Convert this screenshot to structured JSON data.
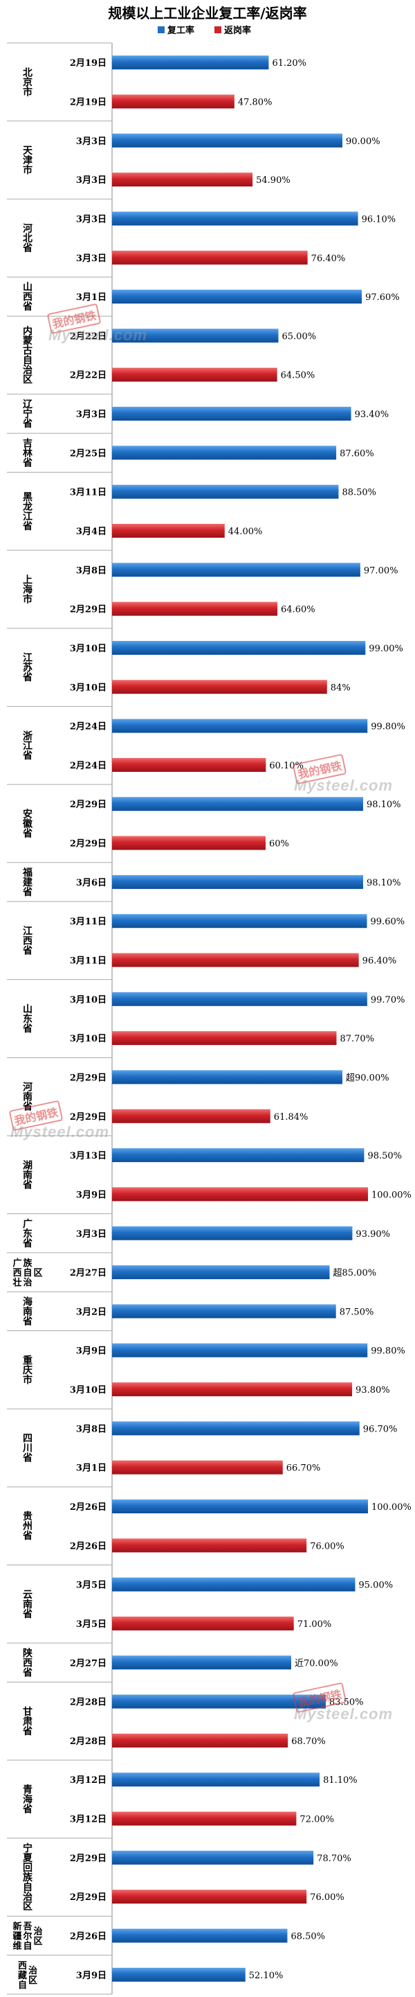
{
  "chart_data": {
    "type": "bar",
    "orientation": "horizontal",
    "title": "规模以上工业企业复工率/返岗率",
    "legend": {
      "placement": "top",
      "items": [
        {
          "name": "复工率",
          "color": "#1f6fc5"
        },
        {
          "name": "返岗率",
          "color": "#d0232a"
        }
      ]
    },
    "xlim": [
      0,
      100
    ],
    "grid": false,
    "bars": [
      {
        "date": "2月19日",
        "metric": "复工率",
        "value": 61.2,
        "label": "61.20%"
      },
      {
        "date": "2月19日",
        "metric": "返岗率",
        "value": 47.8,
        "label": "47.80%"
      },
      {
        "date": "3月3日",
        "metric": "复工率",
        "value": 90.0,
        "label": "90.00%"
      },
      {
        "date": "3月3日",
        "metric": "返岗率",
        "value": 54.9,
        "label": "54.90%"
      },
      {
        "date": "3月3日",
        "metric": "复工率",
        "value": 96.1,
        "label": "96.10%"
      },
      {
        "date": "3月3日",
        "metric": "返岗率",
        "value": 76.4,
        "label": "76.40%"
      },
      {
        "date": "3月1日",
        "metric": "复工率",
        "value": 97.6,
        "label": "97.60%"
      },
      {
        "date": "2月22日",
        "metric": "复工率",
        "value": 65.0,
        "label": "65.00%"
      },
      {
        "date": "2月22日",
        "metric": "返岗率",
        "value": 64.5,
        "label": "64.50%"
      },
      {
        "date": "3月3日",
        "metric": "复工率",
        "value": 93.4,
        "label": "93.40%"
      },
      {
        "date": "2月25日",
        "metric": "复工率",
        "value": 87.6,
        "label": "87.60%"
      },
      {
        "date": "3月11日",
        "metric": "复工率",
        "value": 88.5,
        "label": "88.50%"
      },
      {
        "date": "3月4日",
        "metric": "返岗率",
        "value": 44.0,
        "label": "44.00%"
      },
      {
        "date": "3月8日",
        "metric": "复工率",
        "value": 97.0,
        "label": "97.00%"
      },
      {
        "date": "2月29日",
        "metric": "返岗率",
        "value": 64.6,
        "label": "64.60%"
      },
      {
        "date": "3月10日",
        "metric": "复工率",
        "value": 99.0,
        "label": "99.00%"
      },
      {
        "date": "3月10日",
        "metric": "返岗率",
        "value": 84.0,
        "label": "84%"
      },
      {
        "date": "2月24日",
        "metric": "复工率",
        "value": 99.8,
        "label": "99.80%"
      },
      {
        "date": "2月24日",
        "metric": "返岗率",
        "value": 60.1,
        "label": "60.10%"
      },
      {
        "date": "2月29日",
        "metric": "复工率",
        "value": 98.1,
        "label": "98.10%"
      },
      {
        "date": "2月29日",
        "metric": "返岗率",
        "value": 60.0,
        "label": "60%"
      },
      {
        "date": "3月6日",
        "metric": "复工率",
        "value": 98.1,
        "label": "98.10%"
      },
      {
        "date": "3月11日",
        "metric": "复工率",
        "value": 99.6,
        "label": "99.60%"
      },
      {
        "date": "3月11日",
        "metric": "返岗率",
        "value": 96.4,
        "label": "96.40%"
      },
      {
        "date": "3月10日",
        "metric": "复工率",
        "value": 99.7,
        "label": "99.70%"
      },
      {
        "date": "3月10日",
        "metric": "返岗率",
        "value": 87.7,
        "label": "87.70%"
      },
      {
        "date": "2月29日",
        "metric": "复工率",
        "value": 90.0,
        "label": "超90.00%"
      },
      {
        "date": "2月29日",
        "metric": "返岗率",
        "value": 61.84,
        "label": "61.84%"
      },
      {
        "date": "3月13日",
        "metric": "复工率",
        "value": 98.5,
        "label": "98.50%"
      },
      {
        "date": "3月9日",
        "metric": "返岗率",
        "value": 100.0,
        "label": "100.00%"
      },
      {
        "date": "3月3日",
        "metric": "复工率",
        "value": 93.9,
        "label": "93.90%"
      },
      {
        "date": "2月27日",
        "metric": "复工率",
        "value": 85.0,
        "label": "超85.00%"
      },
      {
        "date": "3月2日",
        "metric": "复工率",
        "value": 87.5,
        "label": "87.50%"
      },
      {
        "date": "3月9日",
        "metric": "复工率",
        "value": 99.8,
        "label": "99.80%"
      },
      {
        "date": "3月10日",
        "metric": "返岗率",
        "value": 93.8,
        "label": "93.80%"
      },
      {
        "date": "3月8日",
        "metric": "复工率",
        "value": 96.7,
        "label": "96.70%"
      },
      {
        "date": "3月1日",
        "metric": "返岗率",
        "value": 66.7,
        "label": "66.70%"
      },
      {
        "date": "2月26日",
        "metric": "复工率",
        "value": 100.0,
        "label": "100.00%"
      },
      {
        "date": "2月26日",
        "metric": "返岗率",
        "value": 76.0,
        "label": "76.00%"
      },
      {
        "date": "3月5日",
        "metric": "复工率",
        "value": 95.0,
        "label": "95.00%"
      },
      {
        "date": "3月5日",
        "metric": "返岗率",
        "value": 71.0,
        "label": "71.00%"
      },
      {
        "date": "2月27日",
        "metric": "复工率",
        "value": 70.0,
        "label": "近70.00%"
      },
      {
        "date": "2月28日",
        "metric": "复工率",
        "value": 83.5,
        "label": "83.50%"
      },
      {
        "date": "2月28日",
        "metric": "返岗率",
        "value": 68.7,
        "label": "68.70%"
      },
      {
        "date": "3月12日",
        "metric": "复工率",
        "value": 81.1,
        "label": "81.10%"
      },
      {
        "date": "3月12日",
        "metric": "返岗率",
        "value": 72.0,
        "label": "72.00%"
      },
      {
        "date": "2月29日",
        "metric": "复工率",
        "value": 78.7,
        "label": "78.70%"
      },
      {
        "date": "2月29日",
        "metric": "返岗率",
        "value": 76.0,
        "label": "76.00%"
      },
      {
        "date": "2月26日",
        "metric": "复工率",
        "value": 68.5,
        "label": "68.50%"
      },
      {
        "date": "3月9日",
        "metric": "复工率",
        "value": 52.1,
        "label": "52.10%"
      }
    ],
    "groups": [
      {
        "name": "北京市",
        "bars": 2
      },
      {
        "name": "天津市",
        "bars": 2
      },
      {
        "name": "河北省",
        "bars": 2
      },
      {
        "name": "山西省",
        "bars": 1
      },
      {
        "name": "内蒙古自治区",
        "bars": 2
      },
      {
        "name": "辽宁省",
        "bars": 1
      },
      {
        "name": "吉林省",
        "bars": 1
      },
      {
        "name": "黑龙江省",
        "bars": 2
      },
      {
        "name": "上海市",
        "bars": 2
      },
      {
        "name": "江苏省",
        "bars": 2
      },
      {
        "name": "浙江省",
        "bars": 2
      },
      {
        "name": "安徽省",
        "bars": 2
      },
      {
        "name": "福建省",
        "bars": 1
      },
      {
        "name": "江西省",
        "bars": 2
      },
      {
        "name": "山东省",
        "bars": 2
      },
      {
        "name": "河南省",
        "bars": 2
      },
      {
        "name": "湖南省",
        "bars": 2
      },
      {
        "name": "广东省",
        "bars": 1
      },
      {
        "name": "广西壮族自治区",
        "bars": 1
      },
      {
        "name": "海南省",
        "bars": 1
      },
      {
        "name": "重庆市",
        "bars": 2
      },
      {
        "name": "四川省",
        "bars": 2
      },
      {
        "name": "贵州省",
        "bars": 2
      },
      {
        "name": "云南省",
        "bars": 2
      },
      {
        "name": "陕西省",
        "bars": 1
      },
      {
        "name": "甘肃省",
        "bars": 2
      },
      {
        "name": "青海省",
        "bars": 2
      },
      {
        "name": "宁夏回族自治区",
        "bars": 2
      },
      {
        "name": "新疆维吾尔自治区",
        "bars": 1
      },
      {
        "name": "西藏自治区",
        "bars": 1
      }
    ]
  },
  "watermark": {
    "cn": "我的钢铁",
    "en": "Mysteel.com"
  }
}
